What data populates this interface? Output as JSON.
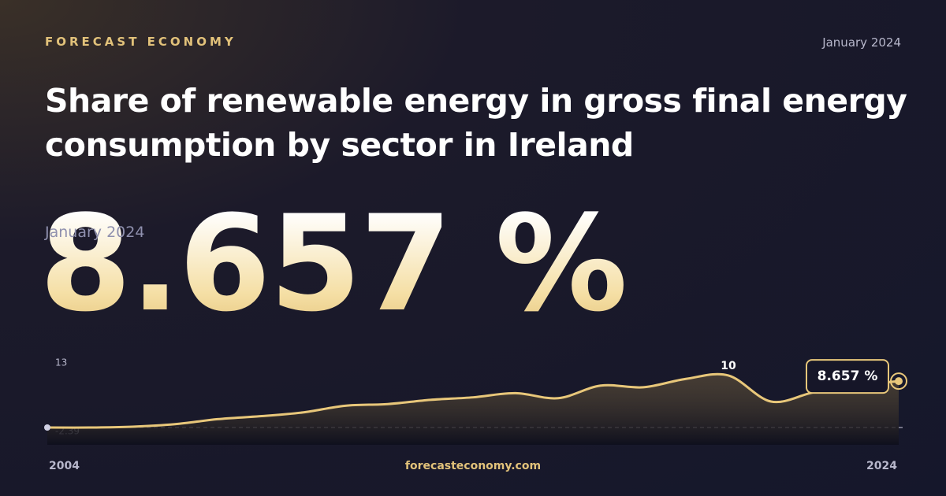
{
  "brand": "FORECAST ECONOMY",
  "date": "January 2024",
  "footer": "forecasteconomy.com",
  "headline": {
    "date": "January 2024",
    "value": 8.657,
    "label": "8.657 %"
  },
  "chart_data": {
    "type": "line",
    "title": "Share of renewable energy in gross final energy consumption by sector in Ireland",
    "x": [
      2004,
      2005,
      2006,
      2007,
      2008,
      2009,
      2010,
      2011,
      2012,
      2013,
      2014,
      2015,
      2016,
      2017,
      2018,
      2019,
      2020,
      2021,
      2022,
      2023,
      2024
    ],
    "series": [
      {
        "color": "#e8c77a",
        "values": [
          -2.39,
          -2.39,
          -2.2,
          -1.6,
          -0.4,
          0.3,
          1.2,
          2.8,
          3.2,
          4.2,
          4.8,
          5.8,
          4.6,
          7.6,
          7.2,
          9.2,
          10,
          3.8,
          6.0,
          7.6,
          8.657
        ]
      }
    ],
    "xlim": [
      2004,
      2024
    ],
    "xticks": [
      2004,
      2024
    ],
    "ylim": [
      -2.39,
      13
    ],
    "yticks": [
      -2.39,
      13
    ],
    "annotations": [
      {
        "x": 2020,
        "y": 10,
        "label": "10"
      },
      {
        "x": 2024,
        "y": 8.657,
        "label": "8.657 %"
      }
    ]
  }
}
